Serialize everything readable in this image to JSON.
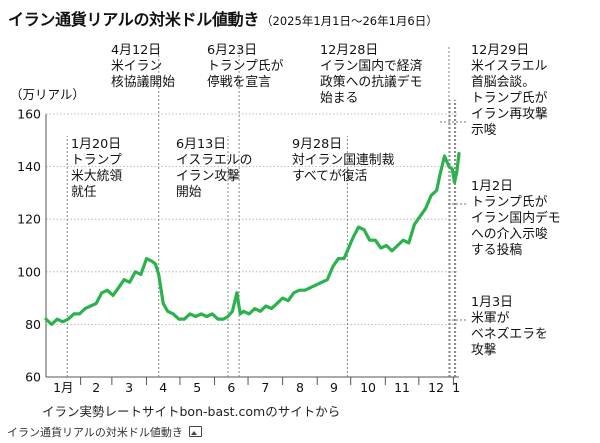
{
  "title": "イラン通貨リアルの対米ドル値動き",
  "subtitle": "（2025年1月1日〜26年1月6日）",
  "source": "イラン実勢レートサイトbon-bast.comのサイトから",
  "caption": "イラン通貨リアルの対米ドル値動き",
  "icons": {
    "caption_icon": "image-icon"
  },
  "colors": {
    "line": "#2bb24c",
    "grid": "#aaaaaa",
    "axis": "#555555"
  },
  "chart_data": {
    "type": "line",
    "title": "イラン通貨リアルの対米ドル値動き",
    "ylabel": "（万リアル）",
    "ylim": [
      60,
      160
    ],
    "yticks": [
      60,
      80,
      100,
      120,
      140,
      160
    ],
    "xlim": [
      "2025-01-01",
      "2026-01-06"
    ],
    "month_labels": [
      {
        "label": "1月",
        "month": "2025-01"
      },
      {
        "label": "2",
        "month": "2025-02"
      },
      {
        "label": "3",
        "month": "2025-03"
      },
      {
        "label": "4",
        "month": "2025-04"
      },
      {
        "label": "5",
        "month": "2025-05"
      },
      {
        "label": "6",
        "month": "2025-06"
      },
      {
        "label": "7",
        "month": "2025-07"
      },
      {
        "label": "8",
        "month": "2025-08"
      },
      {
        "label": "9",
        "month": "2025-09"
      },
      {
        "label": "10",
        "month": "2025-10"
      },
      {
        "label": "11",
        "month": "2025-11"
      },
      {
        "label": "12",
        "month": "2025-12"
      },
      {
        "label": "1",
        "month": "2026-01"
      }
    ],
    "series": [
      {
        "x": [
          "2025-01-01",
          "2025-01-06",
          "2025-01-11",
          "2025-01-16",
          "2025-01-21",
          "2025-01-26",
          "2025-01-31",
          "2025-02-05",
          "2025-02-10",
          "2025-02-15",
          "2025-02-20",
          "2025-02-25",
          "2025-03-02",
          "2025-03-07",
          "2025-03-12",
          "2025-03-17",
          "2025-03-22",
          "2025-03-27",
          "2025-04-01",
          "2025-04-06",
          "2025-04-09",
          "2025-04-12",
          "2025-04-16",
          "2025-04-20",
          "2025-04-25",
          "2025-04-30",
          "2025-05-05",
          "2025-05-10",
          "2025-05-15",
          "2025-05-20",
          "2025-05-25",
          "2025-05-30",
          "2025-06-04",
          "2025-06-09",
          "2025-06-13",
          "2025-06-17",
          "2025-06-21",
          "2025-06-24",
          "2025-06-27",
          "2025-07-02",
          "2025-07-07",
          "2025-07-12",
          "2025-07-17",
          "2025-07-22",
          "2025-07-27",
          "2025-08-01",
          "2025-08-06",
          "2025-08-11",
          "2025-08-16",
          "2025-08-21",
          "2025-08-26",
          "2025-08-31",
          "2025-09-05",
          "2025-09-10",
          "2025-09-15",
          "2025-09-20",
          "2025-09-25",
          "2025-09-28",
          "2025-10-03",
          "2025-10-08",
          "2025-10-13",
          "2025-10-18",
          "2025-10-23",
          "2025-10-28",
          "2025-11-02",
          "2025-11-07",
          "2025-11-12",
          "2025-11-17",
          "2025-11-22",
          "2025-11-27",
          "2025-12-02",
          "2025-12-07",
          "2025-12-12",
          "2025-12-17",
          "2025-12-20",
          "2025-12-24",
          "2025-12-28",
          "2025-12-31",
          "2026-01-02",
          "2026-01-04",
          "2026-01-06"
        ],
        "values": [
          82,
          80,
          82,
          81,
          82,
          84,
          84,
          86,
          87,
          88,
          92,
          93,
          91,
          94,
          97,
          96,
          100,
          99,
          105,
          104,
          103,
          99,
          88,
          85,
          84,
          82,
          82,
          84,
          83,
          84,
          83,
          84,
          82,
          82,
          83,
          85,
          92,
          84,
          85,
          84,
          86,
          85,
          87,
          86,
          88,
          90,
          89,
          92,
          93,
          93,
          94,
          95,
          96,
          97,
          102,
          105,
          105,
          108,
          113,
          117,
          116,
          112,
          112,
          109,
          110,
          108,
          110,
          112,
          111,
          118,
          121,
          124,
          129,
          131,
          137,
          144,
          140,
          139,
          134,
          138,
          145
        ]
      }
    ],
    "annotations": [
      {
        "date_label": "1月20日",
        "lines": [
          "トランプ",
          "米大統領",
          "就任"
        ],
        "date": "2025-01-20"
      },
      {
        "date_label": "4月12日",
        "lines": [
          "米イラン",
          "核協議開始"
        ],
        "date": "2025-04-12"
      },
      {
        "date_label": "6月13日",
        "lines": [
          "イスラエルの",
          "イラン攻撃",
          "開始"
        ],
        "date": "2025-06-13"
      },
      {
        "date_label": "6月23日",
        "lines": [
          "トランプ氏が",
          "停戦を宣言"
        ],
        "date": "2025-06-23"
      },
      {
        "date_label": "9月28日",
        "lines": [
          "対イラン国連制裁",
          "すべてが復活"
        ],
        "date": "2025-09-28"
      },
      {
        "date_label": "12月28日",
        "lines": [
          "イラン国内で経済",
          "政策への抗議デモ",
          "始まる"
        ],
        "date": "2025-12-28"
      },
      {
        "date_label": "12月29日",
        "lines": [
          "米イスラエル",
          "首脳会談。",
          "トランプ氏が",
          "イラン再攻撃",
          "示唆"
        ],
        "date": "2025-12-29"
      },
      {
        "date_label": "1月2日",
        "lines": [
          "トランプ氏が",
          "イラン国内デモ",
          "への介入示唆",
          "する投稿"
        ],
        "date": "2026-01-02"
      },
      {
        "date_label": "1月3日",
        "lines": [
          "米軍が",
          "ベネズエラを",
          "攻撃"
        ],
        "date": "2026-01-03"
      }
    ]
  }
}
